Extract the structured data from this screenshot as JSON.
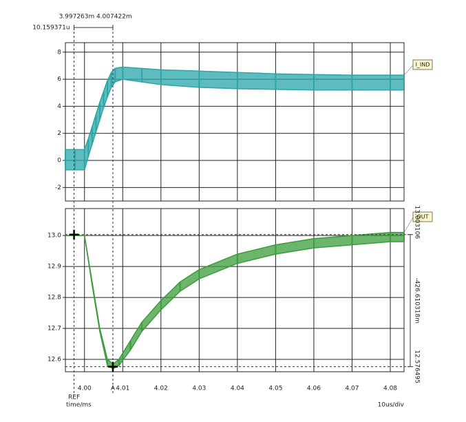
{
  "chart_data": [
    {
      "type": "band",
      "series": [
        {
          "name": "I_IND",
          "color": "#2aa6a8",
          "x": [
            3.995,
            3.9975,
            4.0,
            4.001,
            4.002,
            4.003,
            4.004,
            4.005,
            4.006,
            4.007,
            4.008,
            4.01,
            4.015,
            4.02,
            4.03,
            4.04,
            4.05,
            4.06,
            4.07,
            4.08,
            4.0836
          ],
          "values": [
            0.8,
            0.8,
            0.8,
            1.6,
            2.5,
            3.4,
            4.3,
            5.1,
            5.9,
            6.5,
            6.8,
            6.9,
            6.8,
            6.7,
            6.6,
            6.5,
            6.4,
            6.35,
            6.3,
            6.3,
            6.3
          ],
          "lower": [
            -0.7,
            -0.7,
            -0.7,
            0.3,
            1.2,
            2.1,
            3.0,
            3.9,
            4.7,
            5.4,
            5.8,
            6.0,
            5.8,
            5.6,
            5.4,
            5.3,
            5.25,
            5.2,
            5.2,
            5.2,
            5.2
          ]
        }
      ],
      "xlim": [
        3.995,
        4.0836
      ],
      "xticks": [
        4,
        4.01,
        4.02,
        4.03,
        4.04,
        4.05,
        4.06,
        4.07,
        4.08
      ],
      "ylim": [
        -3,
        8.7
      ],
      "yticks": [
        -2,
        0,
        2,
        4,
        6,
        8
      ],
      "grid": true
    },
    {
      "type": "band",
      "series": [
        {
          "name": "OUT",
          "color": "#3c9c3c",
          "x": [
            3.995,
            4.0,
            4.002,
            4.004,
            4.006,
            4.0075,
            4.009,
            4.012,
            4.015,
            4.02,
            4.025,
            4.03,
            4.04,
            4.05,
            4.06,
            4.07,
            4.08,
            4.0836
          ],
          "values": [
            13.0,
            13.0,
            12.85,
            12.7,
            12.6,
            12.585,
            12.6,
            12.66,
            12.72,
            12.79,
            12.85,
            12.89,
            12.94,
            12.97,
            12.99,
            13.0,
            13.01,
            13.01
          ],
          "lower": [
            13.0,
            13.0,
            12.84,
            12.69,
            12.58,
            12.57,
            12.58,
            12.63,
            12.69,
            12.76,
            12.82,
            12.86,
            12.91,
            12.94,
            12.96,
            12.97,
            12.98,
            12.98
          ]
        }
      ],
      "xlim": [
        3.995,
        4.0836
      ],
      "xticks": [
        {
          "value": 4,
          "label": "4.00"
        },
        4.01,
        4.02,
        4.03,
        4.04,
        4.05,
        4.06,
        4.07,
        4.08
      ],
      "ylim": [
        12.56,
        13.087
      ],
      "yticks": [
        {
          "value": 13,
          "label": "13.0"
        },
        12.9,
        12.8,
        12.7,
        12.6
      ],
      "grid": true,
      "x_unit_label": "time/ms",
      "scale_label": "10us/div"
    }
  ],
  "cursors": {
    "ref": {
      "name": "REF",
      "x": {
        "value": 3.997263,
        "label": "3.997263m"
      },
      "y": {
        "value": 13.003106,
        "label": "13.003106"
      }
    },
    "a": {
      "name": "A",
      "x": {
        "value": 4.007422,
        "label": "4.007422m"
      },
      "y": {
        "value": 12.576495,
        "label": "12.576495"
      }
    },
    "dx": {
      "value": 10.159371,
      "label": "10.159371u"
    },
    "dy": {
      "value": -0.426610318,
      "label": "-426.610318m"
    }
  }
}
